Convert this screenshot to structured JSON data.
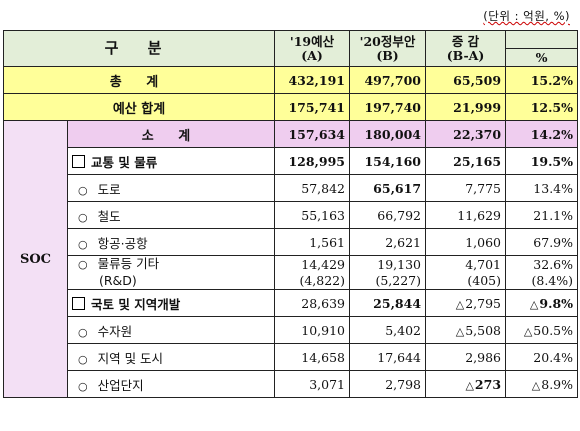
{
  "unit_note": "(단위 : 억원, %)",
  "header": {
    "category": "구  분",
    "col1_line1": "'19예산",
    "col1_line2": "(A)",
    "col2_line1": "'20정부안",
    "col2_line2": "(B)",
    "col3_line1": "증 감",
    "col3_line2": "(B-A)",
    "col4": "%"
  },
  "total": {
    "label": "총 계",
    "a": "432,191",
    "b": "497,700",
    "diff": "65,509",
    "pct": "15.2%"
  },
  "budget_total": {
    "label": "예산 합계",
    "a": "175,741",
    "b": "197,740",
    "diff": "21,999",
    "pct": "12.5%"
  },
  "soc": {
    "label": "SOC",
    "subtotal": {
      "label": "소 계",
      "a": "157,634",
      "b": "180,004",
      "diff": "22,370",
      "pct": "14.2%"
    },
    "transport": {
      "label": "교통 및 물류",
      "a": "128,995",
      "b": "154,160",
      "diff": "25,165",
      "pct": "19.5%"
    },
    "road": {
      "label": "도로",
      "a": "57,842",
      "b": "65,617",
      "diff": "7,775",
      "pct": "13.4%"
    },
    "rail": {
      "label": "철도",
      "a": "55,163",
      "b": "66,792",
      "diff": "11,629",
      "pct": "21.1%"
    },
    "air": {
      "label": "항공·공항",
      "a": "1,561",
      "b": "2,621",
      "diff": "1,060",
      "pct": "67.9%"
    },
    "logistics": {
      "label": "물류등 기타",
      "sub_label": "(R&D)",
      "a": "14,429",
      "a_sub": "(4,822)",
      "b": "19,130",
      "b_sub": "(5,227)",
      "diff": "4,701",
      "diff_sub": "(405)",
      "pct": "32.6%",
      "pct_sub": "(8.4%)"
    },
    "land": {
      "label": "국토 및 지역개발",
      "a": "28,639",
      "b": "25,844",
      "diff": "2,795",
      "pct": "9.8%"
    },
    "water": {
      "label": "수자원",
      "a": "10,910",
      "b": "5,402",
      "diff": "5,508",
      "pct": "50.5%"
    },
    "region": {
      "label": "지역 및 도시",
      "a": "14,658",
      "b": "17,644",
      "diff": "2,986",
      "pct": "20.4%"
    },
    "industrial": {
      "label": "산업단지",
      "a": "3,071",
      "b": "2,798",
      "diff": "273",
      "pct": "8.9%"
    }
  },
  "decrease_marker": "△"
}
